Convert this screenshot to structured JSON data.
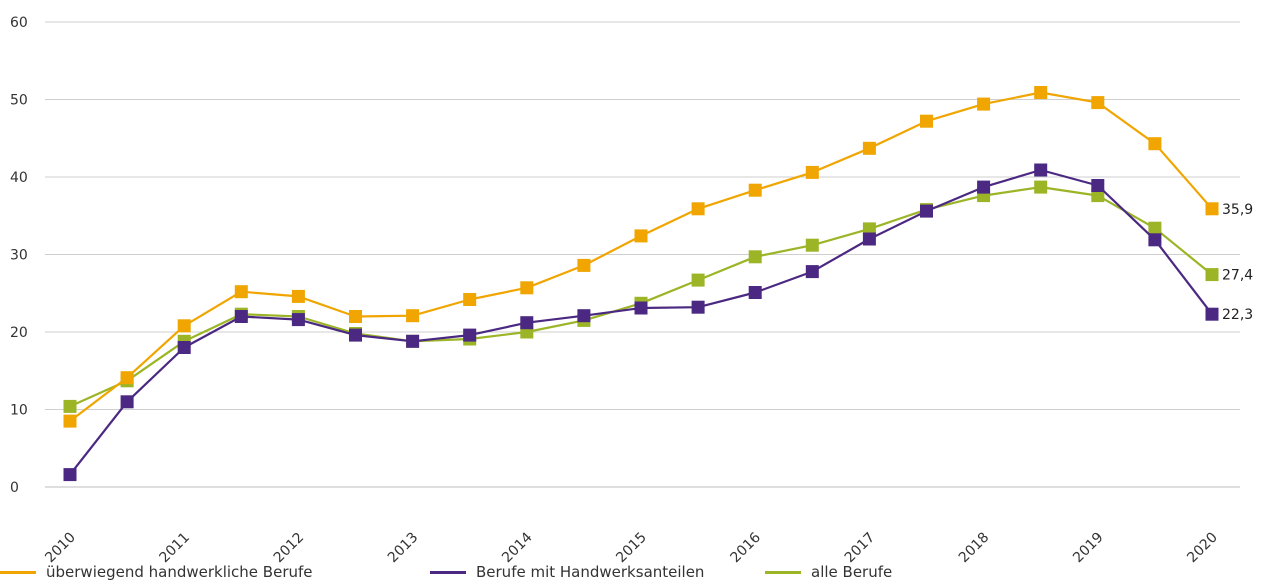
{
  "chart_data": {
    "type": "line",
    "title": "",
    "xlabel": "",
    "ylabel": "",
    "ylim": [
      0,
      60
    ],
    "yticks": [
      0,
      10,
      20,
      30,
      40,
      50,
      60
    ],
    "x_tick_labels": [
      "2010",
      "2011",
      "2012",
      "2013",
      "2014",
      "2015",
      "2016",
      "2017",
      "2018",
      "2019",
      "2020"
    ],
    "x": [
      2010,
      2010.5,
      2011,
      2011.5,
      2012,
      2012.5,
      2013,
      2013.5,
      2014,
      2014.5,
      2015,
      2015.5,
      2016,
      2016.5,
      2017,
      2017.5,
      2018,
      2018.5,
      2019,
      2019.5,
      2020
    ],
    "grid": "horizontal",
    "legend_position": "bottom",
    "series": [
      {
        "name": "überwiegend handwerkliche Berufe",
        "color": "#f0a500",
        "values": [
          8.5,
          14.1,
          20.8,
          25.2,
          24.6,
          22.0,
          22.1,
          24.2,
          25.7,
          28.6,
          32.4,
          35.9,
          38.3,
          40.6,
          43.7,
          47.2,
          49.4,
          50.9,
          49.6,
          44.3,
          35.9
        ],
        "end_label": "35,9"
      },
      {
        "name": "Berufe mit Handwerksanteilen",
        "color": "#4b2882",
        "values": [
          1.6,
          11.0,
          18.0,
          22.0,
          21.6,
          19.6,
          18.8,
          19.6,
          21.2,
          22.1,
          23.1,
          23.2,
          25.1,
          27.8,
          32.0,
          35.6,
          38.7,
          40.9,
          38.9,
          31.9,
          22.3
        ],
        "end_label": "22,3"
      },
      {
        "name": "alle Berufe",
        "color": "#9bb526",
        "values": [
          10.4,
          13.7,
          18.8,
          22.3,
          22.0,
          19.8,
          18.8,
          19.1,
          20.0,
          21.5,
          23.7,
          26.7,
          29.7,
          31.2,
          33.3,
          35.8,
          37.6,
          38.7,
          37.6,
          33.4,
          27.4
        ],
        "end_label": "27,4"
      }
    ]
  }
}
